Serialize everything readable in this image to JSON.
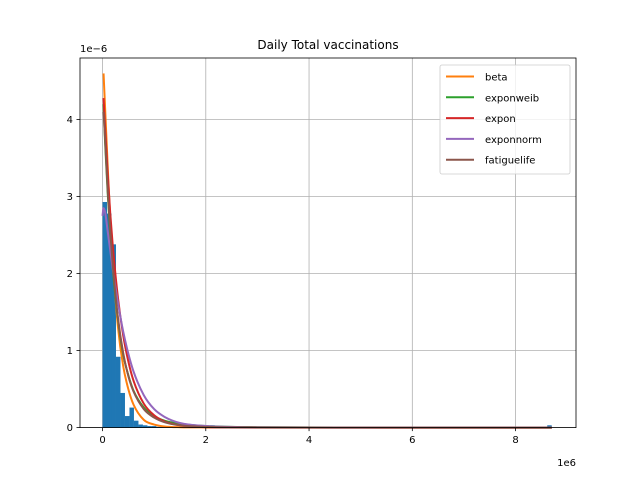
{
  "chart_data": {
    "type": "histogram",
    "title": "Daily Total vaccinations",
    "xlabel": "",
    "ylabel": "",
    "x_offset_label": "1e6",
    "y_offset_label": "1e−6",
    "xlim": [
      -0.436,
      9.17
    ],
    "ylim": [
      0,
      4.8
    ],
    "x_ticks": [
      0,
      2,
      4,
      6,
      8
    ],
    "y_ticks": [
      0,
      1,
      2,
      3,
      4
    ],
    "grid": true,
    "legend_position": "top-right",
    "histogram": {
      "color": "#1f77b4",
      "bin_width": 0.087,
      "bins": [
        {
          "x": 0.0,
          "height": 2.93
        },
        {
          "x": 0.087,
          "height": 2.78
        },
        {
          "x": 0.174,
          "height": 2.38
        },
        {
          "x": 0.261,
          "height": 0.92
        },
        {
          "x": 0.348,
          "height": 0.45
        },
        {
          "x": 0.435,
          "height": 0.15
        },
        {
          "x": 0.522,
          "height": 0.26
        },
        {
          "x": 0.609,
          "height": 0.09
        },
        {
          "x": 0.696,
          "height": 0.04
        },
        {
          "x": 0.783,
          "height": 0.03
        },
        {
          "x": 0.87,
          "height": 0.02
        },
        {
          "x": 0.957,
          "height": 0.02
        },
        {
          "x": 1.044,
          "height": 0.01
        },
        {
          "x": 1.131,
          "height": 0.01
        },
        {
          "x": 1.218,
          "height": 0.01
        },
        {
          "x": 1.305,
          "height": 0.005
        },
        {
          "x": 1.392,
          "height": 0.005
        },
        {
          "x": 1.479,
          "height": 0.005
        },
        {
          "x": 2.088,
          "height": 0.03
        },
        {
          "x": 2.175,
          "height": 0.01
        },
        {
          "x": 8.613,
          "height": 0.03
        }
      ]
    },
    "series": [
      {
        "name": "beta",
        "color": "#ff7f0e",
        "x": [
          0.02,
          0.05,
          0.1,
          0.15,
          0.2,
          0.3,
          0.4,
          0.5,
          0.6,
          0.8,
          1.0,
          1.2,
          1.5,
          2.0,
          3.0,
          5.0,
          8.7
        ],
        "y": [
          4.6,
          4.15,
          3.4,
          2.7,
          2.15,
          1.3,
          0.8,
          0.5,
          0.3,
          0.1,
          0.04,
          0.015,
          0.005,
          0.002,
          0.001,
          0.0005,
          0.0
        ]
      },
      {
        "name": "exponweib",
        "color": "#2ca02c",
        "x": [
          0.02,
          0.05,
          0.1,
          0.15,
          0.2,
          0.3,
          0.4,
          0.5,
          0.6,
          0.8,
          1.0,
          1.2,
          1.5,
          2.0,
          3.0,
          5.0,
          8.7
        ],
        "y": [
          4.2,
          3.7,
          3.05,
          2.5,
          2.05,
          1.4,
          0.95,
          0.68,
          0.48,
          0.26,
          0.15,
          0.09,
          0.05,
          0.02,
          0.005,
          0.001,
          0.0
        ]
      },
      {
        "name": "expon",
        "color": "#d62728",
        "x": [
          0.02,
          0.05,
          0.1,
          0.15,
          0.2,
          0.3,
          0.4,
          0.5,
          0.6,
          0.8,
          1.0,
          1.2,
          1.5,
          2.0,
          3.0,
          5.0,
          8.7
        ],
        "y": [
          4.28,
          3.9,
          3.3,
          2.78,
          2.35,
          1.68,
          1.2,
          0.86,
          0.61,
          0.31,
          0.16,
          0.08,
          0.03,
          0.006,
          0.0003,
          0.0,
          0.0
        ]
      },
      {
        "name": "exponnorm",
        "color": "#9467bd",
        "x": [
          0.0,
          0.02,
          0.05,
          0.1,
          0.15,
          0.2,
          0.3,
          0.4,
          0.5,
          0.6,
          0.8,
          1.0,
          1.2,
          1.5,
          2.0,
          3.0,
          5.0,
          8.7
        ],
        "y": [
          2.75,
          2.85,
          2.8,
          2.55,
          2.3,
          2.05,
          1.62,
          1.25,
          0.96,
          0.73,
          0.42,
          0.24,
          0.14,
          0.06,
          0.02,
          0.004,
          0.0,
          0.0
        ]
      },
      {
        "name": "fatiguelife",
        "color": "#8c564b",
        "x": [
          0.02,
          0.05,
          0.1,
          0.15,
          0.2,
          0.3,
          0.4,
          0.5,
          0.6,
          0.8,
          1.0,
          1.2,
          1.5,
          2.0,
          3.0,
          5.0,
          8.7
        ],
        "y": [
          4.1,
          3.75,
          3.1,
          2.55,
          2.1,
          1.42,
          0.97,
          0.67,
          0.47,
          0.24,
          0.13,
          0.07,
          0.03,
          0.01,
          0.002,
          0.0,
          0.0
        ]
      }
    ]
  }
}
